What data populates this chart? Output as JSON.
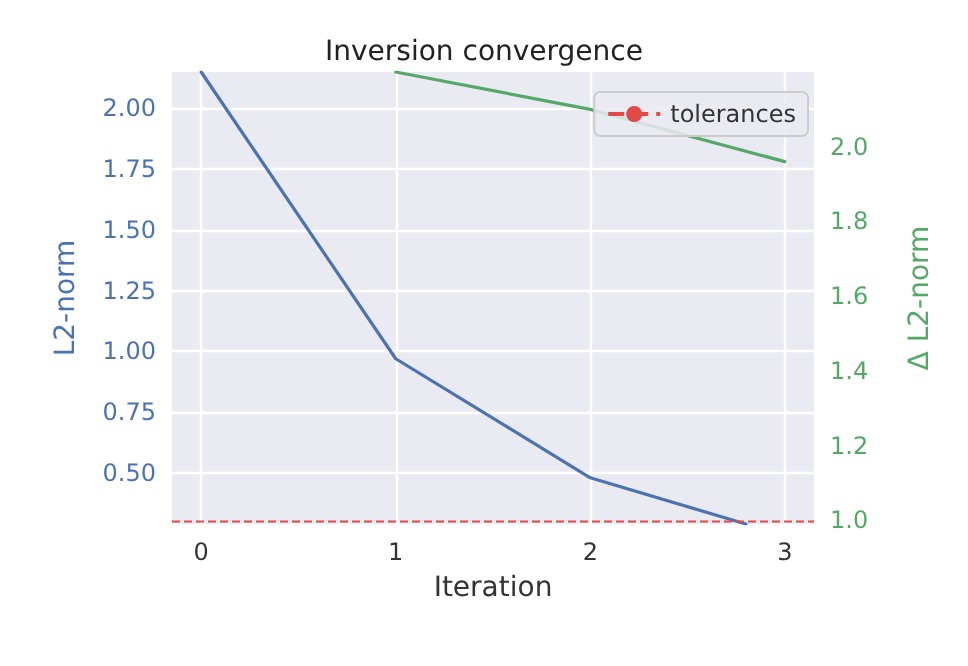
{
  "chart_data": {
    "type": "line",
    "title": "Inversion convergence",
    "xlabel": "Iteration",
    "ylabel": "L2-norm",
    "y2label": "Δ L2-norm",
    "series": [
      {
        "color": "#4c72b0",
        "x": [
          0,
          1,
          2,
          2.8
        ],
        "values": [
          2.15,
          0.97,
          0.48,
          0.29
        ]
      },
      {
        "color": "#55a868",
        "axis": "y2",
        "x": [
          1,
          2,
          3
        ],
        "values": [
          2.2,
          2.1,
          1.96
        ]
      }
    ],
    "xlim": [
      -0.15,
      3.15
    ],
    "xticks": [
      0,
      1,
      2,
      3
    ],
    "ylim": [
      0.29,
      2.15
    ],
    "yticks": [
      {
        "value": 0.5,
        "label": "0.50"
      },
      {
        "value": 0.75,
        "label": "0.75"
      },
      {
        "value": 1,
        "label": "1.00"
      },
      {
        "value": 1.25,
        "label": "1.25"
      },
      {
        "value": 1.5,
        "label": "1.50"
      },
      {
        "value": 1.75,
        "label": "1.75"
      },
      {
        "value": 2,
        "label": "2.00"
      }
    ],
    "y2lim": [
      0.99,
      2.2
    ],
    "y2ticks": [
      {
        "value": 1,
        "label": "1.0"
      },
      {
        "value": 1.2,
        "label": "1.2"
      },
      {
        "value": 1.4,
        "label": "1.4"
      },
      {
        "value": 1.6,
        "label": "1.6"
      },
      {
        "value": 1.8,
        "label": "1.8"
      },
      {
        "value": 2,
        "label": "2.0"
      }
    ],
    "ref_lines": [
      {
        "axis": "y",
        "value": 0.3,
        "label": "tolerances",
        "color": "#e24a4a",
        "line_style": "dashed"
      }
    ],
    "grid": true,
    "legend": "top right",
    "marker": "none",
    "line_style": "solid"
  }
}
